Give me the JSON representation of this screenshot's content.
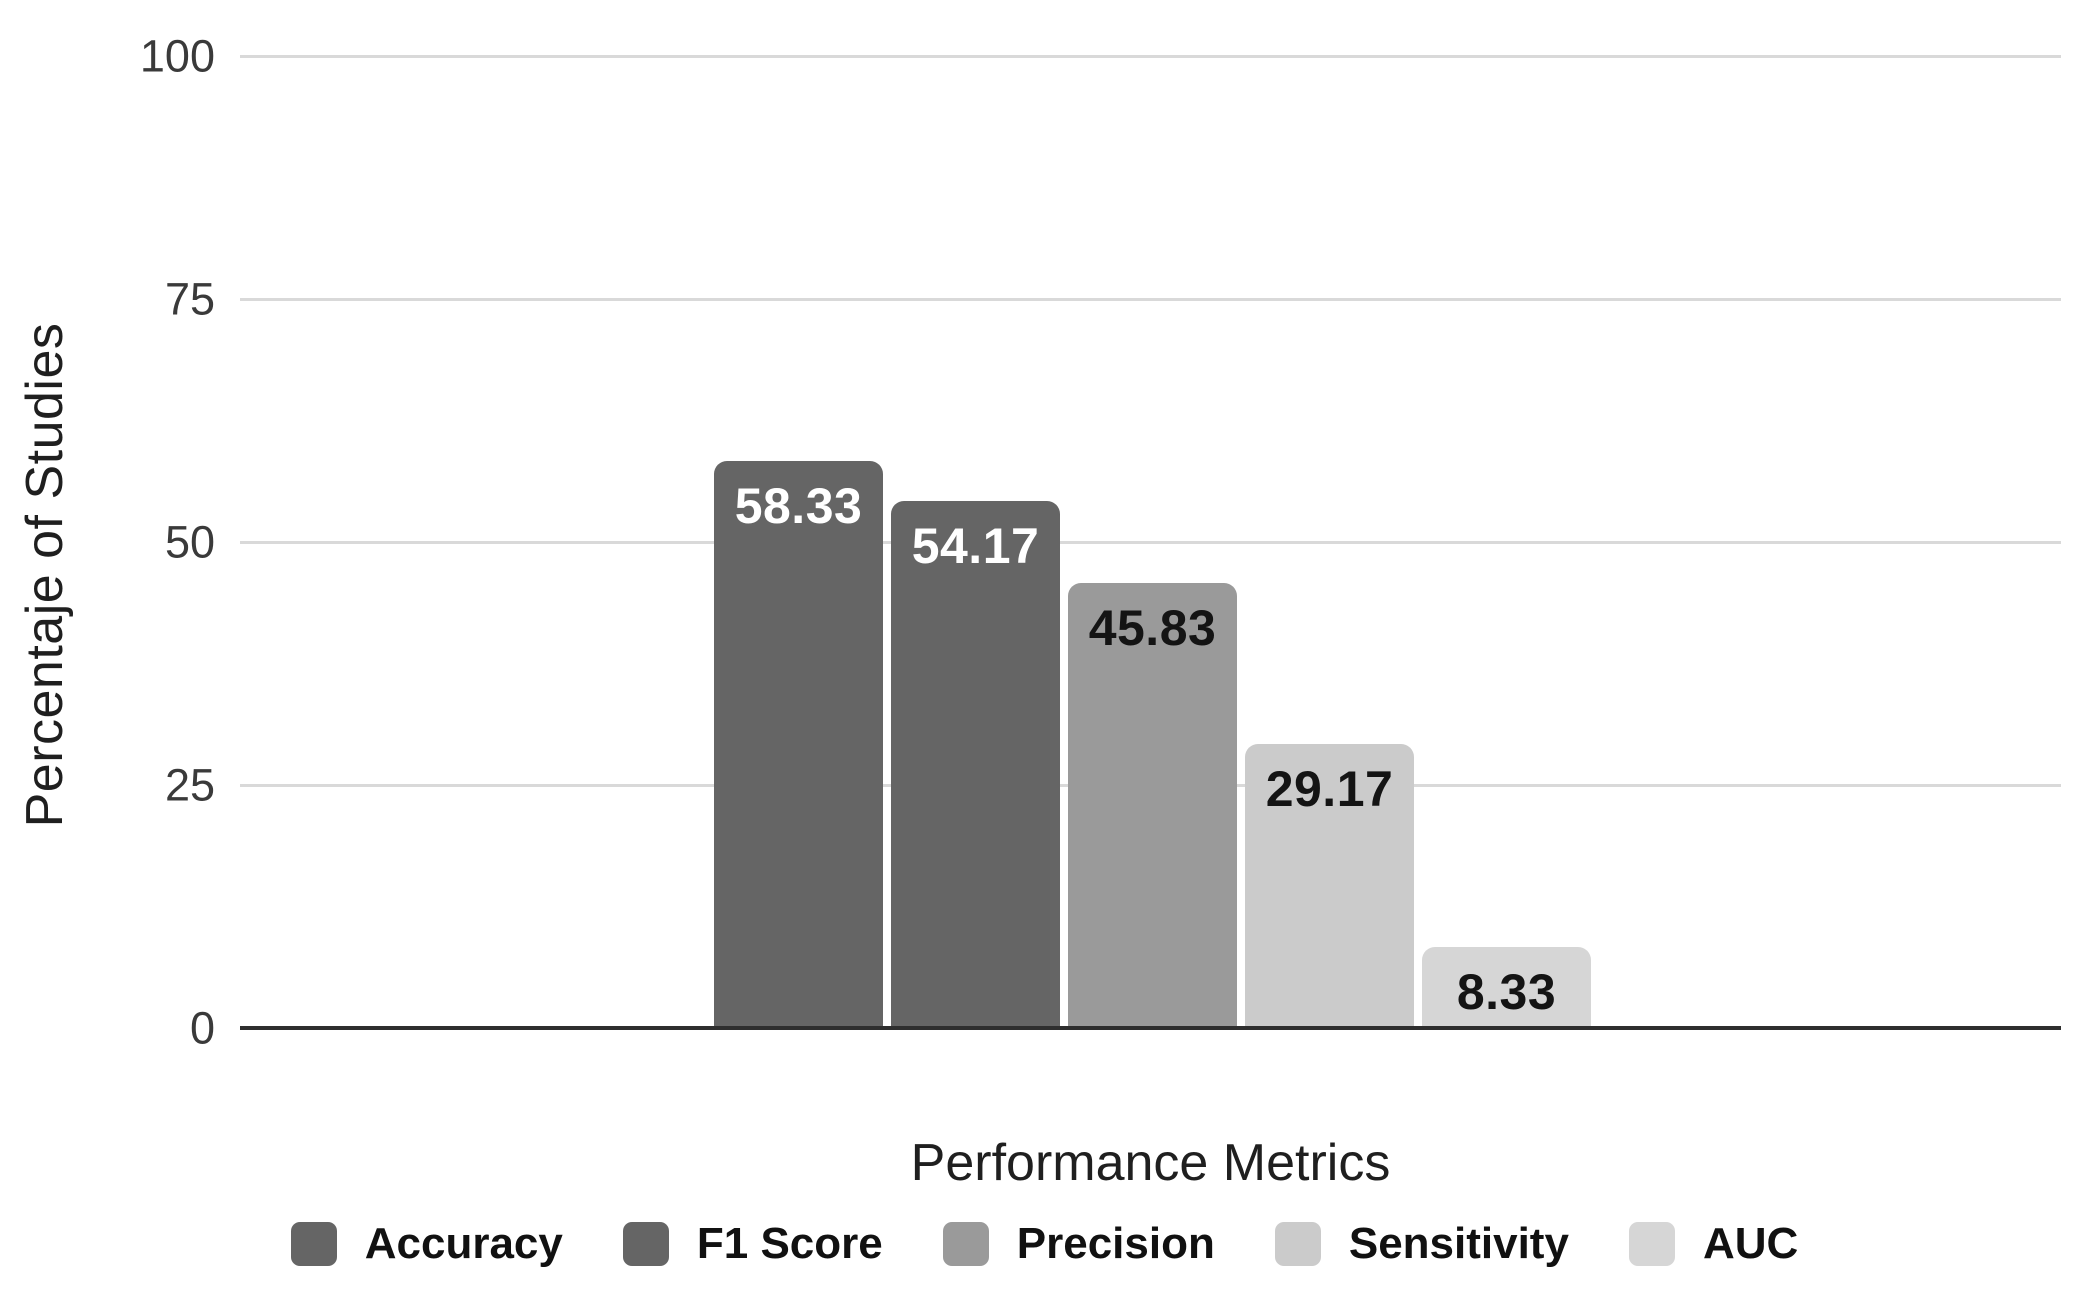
{
  "chart_data": {
    "type": "bar",
    "title": "",
    "xlabel": "Performance Metrics",
    "ylabel": "Percentaje of Studies",
    "ylim": [
      0,
      100
    ],
    "yticks": [
      0,
      25,
      50,
      75,
      100
    ],
    "grid": true,
    "legend_position": "bottom",
    "categories": [
      "Accuracy",
      "F1 Score",
      "Precision",
      "Sensitivity",
      "AUC"
    ],
    "values": [
      58.33,
      54.17,
      45.83,
      29.17,
      8.33
    ],
    "series": [
      {
        "name": "Accuracy",
        "value": 58.33,
        "value_label": "58.33",
        "bar_color": "#656565",
        "value_label_color": "#ffffff"
      },
      {
        "name": "F1 Score",
        "value": 54.17,
        "value_label": "54.17",
        "bar_color": "#656565",
        "value_label_color": "#ffffff"
      },
      {
        "name": "Precision",
        "value": 45.83,
        "value_label": "45.83",
        "bar_color": "#9a9a9a",
        "value_label_color": "#141414"
      },
      {
        "name": "Sensitivity",
        "value": 29.17,
        "value_label": "29.17",
        "bar_color": "#cbcbcb",
        "value_label_color": "#141414"
      },
      {
        "name": "AUC",
        "value": 8.33,
        "value_label": "8.33",
        "bar_color": "#d6d6d6",
        "value_label_color": "#141414"
      }
    ]
  },
  "colors": {
    "background": "#ffffff",
    "gridline": "#d9d9d9",
    "axis_baseline": "#2e2e2e",
    "tick_label": "#3a3a3a",
    "axis_label": "#1f1f1f",
    "legend_label": "#111111"
  }
}
